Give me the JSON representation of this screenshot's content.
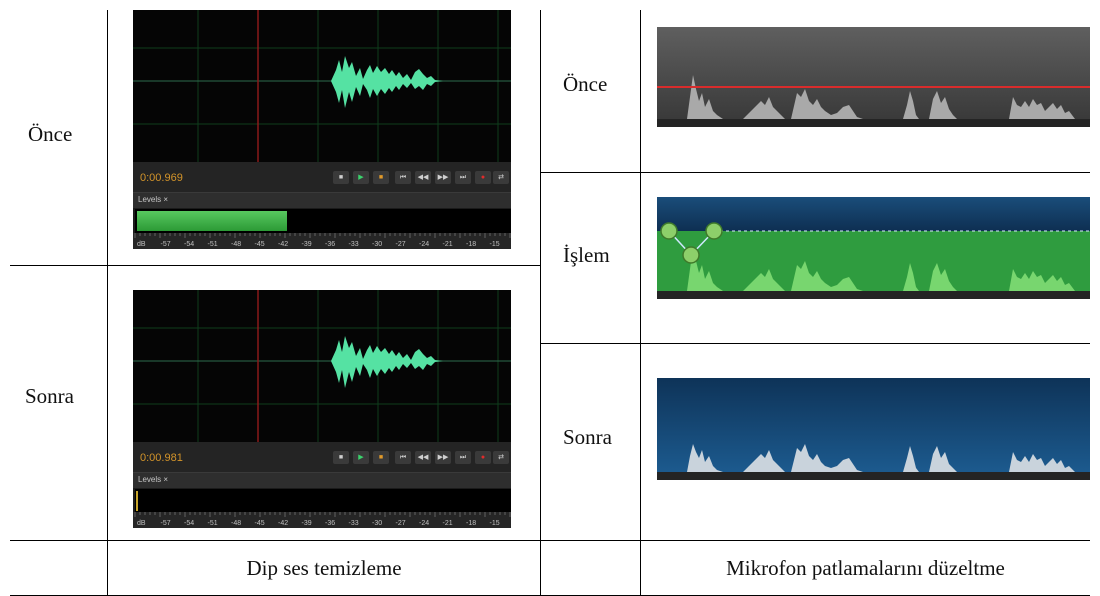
{
  "labels": {
    "left_before": "Önce",
    "left_after": "Sonra",
    "right_before": "Önce",
    "right_process": "İşlem",
    "right_after": "Sonra"
  },
  "captions": {
    "left": "Dip ses temizleme",
    "right": "Mikrofon patlamalarını düzeltme"
  },
  "editor_before": {
    "time": "0:00.969",
    "levels_tab": "Levels ×",
    "level_fill": 0.4
  },
  "editor_after": {
    "time": "0:00.981",
    "levels_tab": "Levels ×",
    "level_fill": 0.0
  },
  "transport_buttons": [
    "■",
    "▶",
    "■",
    "⏮",
    "◀◀",
    "▶▶",
    "⏭",
    "●",
    "⇄"
  ],
  "meter_scale": [
    "dB",
    "-57",
    "-54",
    "-51",
    "-48",
    "-45",
    "-42",
    "-39",
    "-36",
    "-33",
    "-30",
    "-27",
    "-24",
    "-21",
    "-18",
    "-15"
  ],
  "colors": {
    "wave_green": "#55e2a3",
    "playhead_red": "#8a1a1a",
    "time_orange": "#d3942a",
    "threshold_red": "#d92c2c",
    "process_green": "#2f9c3f",
    "after_blue": "#134a78"
  }
}
